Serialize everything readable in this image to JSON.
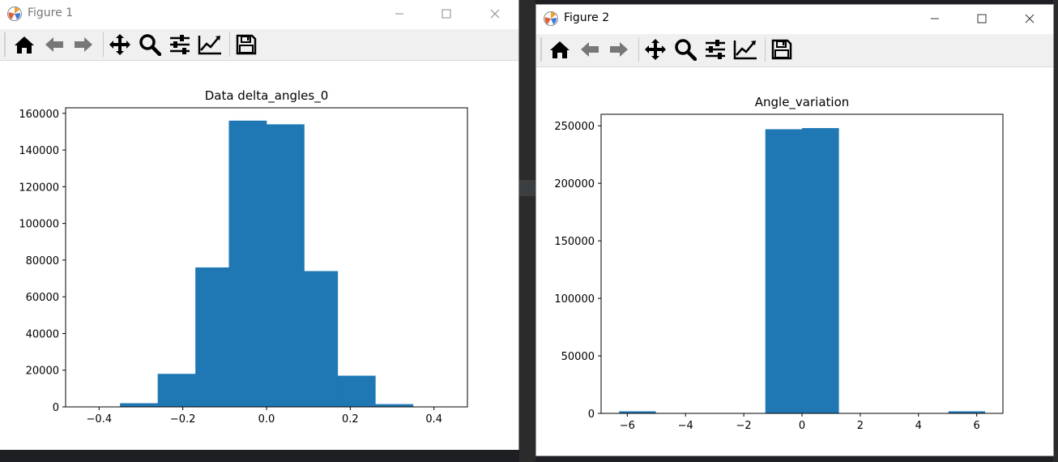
{
  "figures": [
    {
      "window_title": "Figure 1",
      "toolbar": [
        "home-icon",
        "back-icon",
        "forward-icon",
        "pan-icon",
        "zoom-icon",
        "configure-subplots-icon",
        "edit-axis-icon",
        "save-icon"
      ],
      "chart_data": {
        "type": "bar",
        "title": "Data delta_angles_0",
        "xlabel": "",
        "ylabel": "",
        "bins": [
          {
            "x0": -0.44,
            "x1": -0.35,
            "value": 0
          },
          {
            "x0": -0.35,
            "x1": -0.26,
            "value": 2000
          },
          {
            "x0": -0.26,
            "x1": -0.17,
            "value": 18000
          },
          {
            "x0": -0.17,
            "x1": -0.09,
            "value": 76000
          },
          {
            "x0": -0.09,
            "x1": 0.0,
            "value": 156000
          },
          {
            "x0": 0.0,
            "x1": 0.09,
            "value": 154000
          },
          {
            "x0": 0.09,
            "x1": 0.17,
            "value": 74000
          },
          {
            "x0": 0.17,
            "x1": 0.26,
            "value": 17000
          },
          {
            "x0": 0.26,
            "x1": 0.35,
            "value": 1500
          },
          {
            "x0": 0.35,
            "x1": 0.44,
            "value": 0
          }
        ],
        "xlim": [
          -0.48,
          0.48
        ],
        "ylim": [
          0,
          163000
        ],
        "xticks": [
          -0.4,
          -0.2,
          0.0,
          0.2,
          0.4
        ],
        "xtick_labels": [
          "−0.4",
          "−0.2",
          "0.0",
          "0.2",
          "0.4"
        ],
        "yticks": [
          0,
          20000,
          40000,
          60000,
          80000,
          100000,
          120000,
          140000,
          160000
        ],
        "ytick_labels": [
          "0",
          "20000",
          "40000",
          "60000",
          "80000",
          "100000",
          "120000",
          "140000",
          "160000"
        ],
        "bar_color": "#1f77b4",
        "grid": false
      }
    },
    {
      "window_title": "Figure 2",
      "toolbar": [
        "home-icon",
        "back-icon",
        "forward-icon",
        "pan-icon",
        "zoom-icon",
        "configure-subplots-icon",
        "edit-axis-icon",
        "save-icon"
      ],
      "chart_data": {
        "type": "bar",
        "title": "Angle_variation",
        "xlabel": "",
        "ylabel": "",
        "bins": [
          {
            "x0": -6.28,
            "x1": -5.03,
            "value": 1800
          },
          {
            "x0": -5.03,
            "x1": -3.77,
            "value": 0
          },
          {
            "x0": -3.77,
            "x1": -2.51,
            "value": 0
          },
          {
            "x0": -2.51,
            "x1": -1.26,
            "value": 0
          },
          {
            "x0": -1.26,
            "x1": 0.0,
            "value": 247000
          },
          {
            "x0": 0.0,
            "x1": 1.26,
            "value": 248000
          },
          {
            "x0": 1.26,
            "x1": 2.51,
            "value": 0
          },
          {
            "x0": 2.51,
            "x1": 3.77,
            "value": 0
          },
          {
            "x0": 3.77,
            "x1": 5.03,
            "value": 0
          },
          {
            "x0": 5.03,
            "x1": 6.28,
            "value": 1800
          }
        ],
        "xlim": [
          -6.9,
          6.9
        ],
        "ylim": [
          0,
          260000
        ],
        "xticks": [
          -6,
          -4,
          -2,
          0,
          2,
          4,
          6
        ],
        "xtick_labels": [
          "−6",
          "−4",
          "−2",
          "0",
          "2",
          "4",
          "6"
        ],
        "yticks": [
          0,
          50000,
          100000,
          150000,
          200000,
          250000
        ],
        "ytick_labels": [
          "0",
          "50000",
          "100000",
          "150000",
          "200000",
          "250000"
        ],
        "bar_color": "#1f77b4",
        "grid": false
      }
    }
  ]
}
